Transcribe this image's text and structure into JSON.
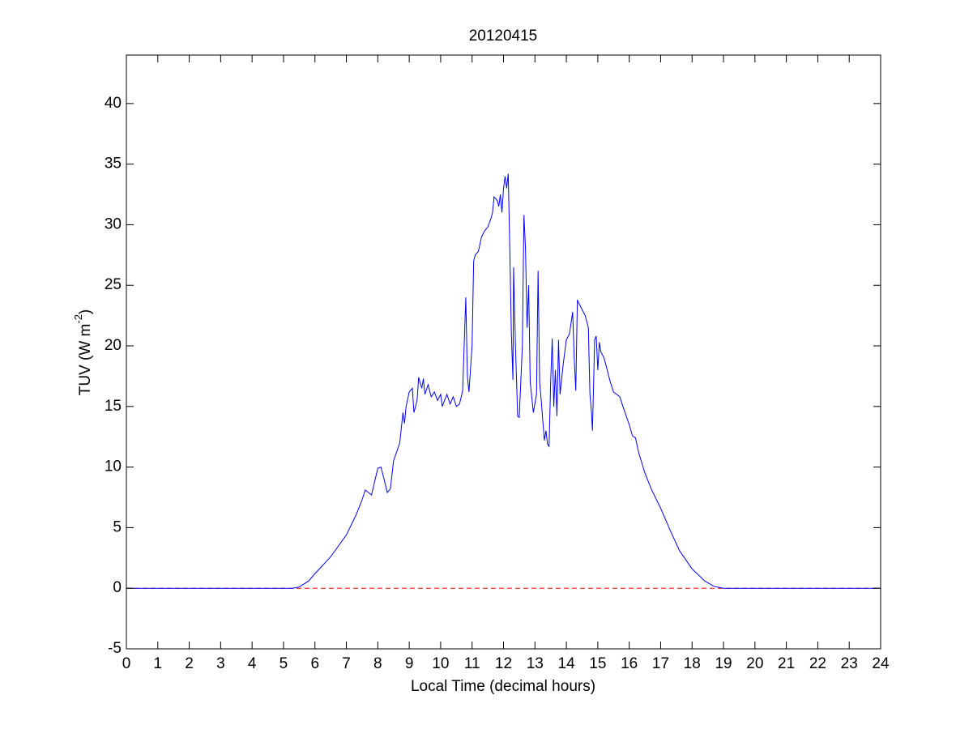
{
  "chart_data": {
    "type": "line",
    "title": "20120415",
    "xlabel": "Local Time (decimal hours)",
    "ylabel": {
      "text": "TUV (W m",
      "superscript": "-2",
      "suffix": ")"
    },
    "xlim": [
      0,
      24
    ],
    "ylim": [
      -5,
      44
    ],
    "xticks": [
      0,
      1,
      2,
      3,
      4,
      5,
      6,
      7,
      8,
      9,
      10,
      11,
      12,
      13,
      14,
      15,
      16,
      17,
      18,
      19,
      20,
      21,
      22,
      23,
      24
    ],
    "yticks": [
      -5,
      0,
      5,
      10,
      15,
      20,
      25,
      30,
      35,
      40
    ],
    "grid": false,
    "reference_line": {
      "value": 0,
      "color": "#ff0000",
      "style": "dashed"
    },
    "series": [
      {
        "color": "#0000ff",
        "x": [
          0,
          5.3,
          5.5,
          5.8,
          6,
          6.5,
          7,
          7.3,
          7.5,
          7.6,
          7.8,
          8,
          8.1,
          8.2,
          8.3,
          8.4,
          8.5,
          8.7,
          8.8,
          8.85,
          8.9,
          9,
          9.1,
          9.15,
          9.25,
          9.3,
          9.4,
          9.45,
          9.5,
          9.6,
          9.7,
          9.8,
          9.9,
          10,
          10.05,
          10.2,
          10.3,
          10.4,
          10.5,
          10.6,
          10.7,
          10.8,
          10.85,
          10.9,
          11,
          11.05,
          11.1,
          11.2,
          11.3,
          11.4,
          11.5,
          11.6,
          11.65,
          11.7,
          11.8,
          11.85,
          11.9,
          11.95,
          12,
          12.05,
          12.1,
          12.15,
          12.2,
          12.25,
          12.3,
          12.32,
          12.38,
          12.45,
          12.5,
          12.6,
          12.65,
          12.7,
          12.75,
          12.8,
          12.85,
          12.95,
          13.05,
          13.1,
          13.15,
          13.2,
          13.3,
          13.35,
          13.4,
          13.45,
          13.5,
          13.55,
          13.6,
          13.65,
          13.7,
          13.75,
          13.8,
          13.9,
          14,
          14.1,
          14.2,
          14.25,
          14.3,
          14.35,
          14.4,
          14.5,
          14.6,
          14.7,
          14.75,
          14.8,
          14.83,
          14.9,
          14.95,
          15,
          15.05,
          15.1,
          15.2,
          15.3,
          15.4,
          15.5,
          15.7,
          15.8,
          16,
          16.1,
          16.2,
          16.3,
          16.5,
          16.7,
          17,
          17.3,
          17.6,
          18,
          18.4,
          18.7,
          19,
          24
        ],
        "values": [
          0,
          0,
          0.1,
          0.6,
          1.2,
          2.6,
          4.4,
          6,
          7.3,
          8.1,
          7.7,
          9.9,
          10,
          9,
          7.9,
          8.2,
          10.5,
          12,
          14.5,
          13.6,
          15,
          16.2,
          16.5,
          14.5,
          15.5,
          17.4,
          16.5,
          17.3,
          16,
          16.8,
          15.8,
          16.2,
          15.5,
          16,
          15,
          16,
          15.2,
          15.8,
          15,
          15.2,
          16.3,
          24,
          17.5,
          16.2,
          20,
          27,
          27.5,
          27.8,
          29,
          29.5,
          29.8,
          30.5,
          31,
          32.3,
          32,
          31.5,
          32.5,
          31,
          33,
          34,
          33,
          34.2,
          28,
          21,
          17.2,
          26.5,
          20,
          14.2,
          14.1,
          20,
          30.8,
          28,
          21.5,
          25,
          17,
          14.5,
          16,
          26.2,
          17,
          15.5,
          12.2,
          13,
          11.9,
          11.7,
          17,
          20.6,
          15,
          18,
          14.2,
          20.5,
          16,
          18.5,
          20.5,
          21,
          22.8,
          19,
          16.3,
          23.8,
          23.5,
          23,
          22.5,
          21.5,
          16,
          14.5,
          13,
          20.5,
          20.8,
          18,
          20.3,
          19.5,
          19,
          18,
          17,
          16.2,
          15.8,
          15,
          13.5,
          12.6,
          12.4,
          11.2,
          9.5,
          8.2,
          6.6,
          4.8,
          3.1,
          1.6,
          0.6,
          0.15,
          0,
          0
        ]
      }
    ]
  }
}
